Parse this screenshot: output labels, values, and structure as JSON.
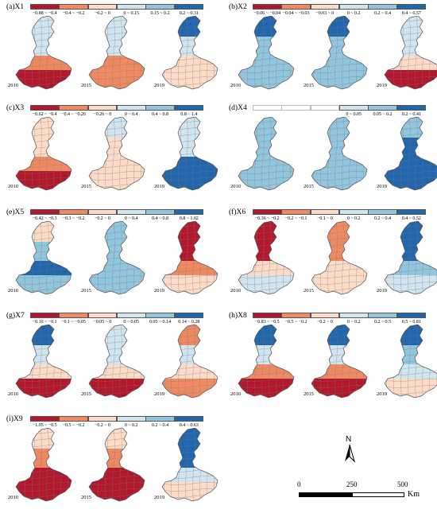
{
  "colors": {
    "dark_red": "#b2182b",
    "red": "#d6604d",
    "salmon": "#f4a582",
    "peach": "#fddbc7",
    "pale_blue": "#d1e5f0",
    "light_blue": "#92c5de",
    "blue": "#4393c3",
    "dark_blue": "#2166ac",
    "white": "#ffffff"
  },
  "panels": [
    {
      "title": "(a)X1",
      "legend": [
        "−0.88 ~ −0.4",
        "−0.4 ~ −0.2",
        "−0.2 ~ 0",
        "0 ~ 0.15",
        "0.15 ~ 0.2",
        "0.2 ~ 0.31"
      ],
      "legend_colors": [
        "#b2182b",
        "#ef8a62",
        "#fddbc7",
        "#d1e5f0",
        "#92c5de",
        "#2166ac"
      ],
      "years": [
        "2010",
        "2015",
        "2019"
      ],
      "maps": [
        {
          "north": "#d1e5f0",
          "upper": "#d1e5f0",
          "middle": "#ef8a62",
          "south": "#b2182b"
        },
        {
          "north": "#d1e5f0",
          "upper": "#d1e5f0",
          "middle": "#ef8a62",
          "south": "#ef8a62"
        },
        {
          "north": "#2166ac",
          "upper": "#d1e5f0",
          "middle": "#fddbc7",
          "south": "#fddbc7"
        }
      ]
    },
    {
      "title": "(b)X2",
      "legend": [
        "−0.06 ~ −0.04",
        "−0.04 ~ −0.03",
        "−0.03 ~ 0",
        "0 ~ 0.2",
        "0.2 ~ 0.4",
        "0.4 ~ 0.57"
      ],
      "legend_colors": [
        "#b2182b",
        "#ef8a62",
        "#fddbc7",
        "#d1e5f0",
        "#92c5de",
        "#2166ac"
      ],
      "years": [
        "2010",
        "2015",
        "2019"
      ],
      "maps": [
        {
          "north": "#2166ac",
          "upper": "#92c5de",
          "middle": "#92c5de",
          "south": "#92c5de"
        },
        {
          "north": "#2166ac",
          "upper": "#92c5de",
          "middle": "#92c5de",
          "south": "#92c5de"
        },
        {
          "north": "#d1e5f0",
          "upper": "#d1e5f0",
          "middle": "#fddbc7",
          "south": "#b2182b"
        }
      ]
    },
    {
      "title": "(c)X3",
      "legend": [
        "−0.62 ~ −0.4",
        "−0.4 ~ −0.26",
        "−0.26 ~ 0",
        "0 ~ 0.4",
        "0.4 ~ 0.8",
        "0.8 ~ 1.4"
      ],
      "legend_colors": [
        "#b2182b",
        "#ef8a62",
        "#fddbc7",
        "#d1e5f0",
        "#92c5de",
        "#2166ac"
      ],
      "years": [
        "2010",
        "2015",
        "2019"
      ],
      "maps": [
        {
          "north": "#fddbc7",
          "upper": "#fddbc7",
          "middle": "#ef8a62",
          "south": "#b2182b"
        },
        {
          "north": "#d1e5f0",
          "upper": "#fddbc7",
          "middle": "#fddbc7",
          "south": "#fddbc7"
        },
        {
          "north": "#d1e5f0",
          "upper": "#d1e5f0",
          "middle": "#2166ac",
          "south": "#2166ac"
        }
      ]
    },
    {
      "title": "(d)X4",
      "legend": [
        "",
        "",
        "",
        "0 ~ 0.05",
        "0.05 ~ 0.2",
        "0.2 ~ 0.41"
      ],
      "legend_colors": [
        "#ffffff",
        "#ffffff",
        "#ffffff",
        "#d1e5f0",
        "#92c5de",
        "#2166ac"
      ],
      "years": [
        "2010",
        "2015",
        "2019"
      ],
      "maps": [
        {
          "north": "#92c5de",
          "upper": "#92c5de",
          "middle": "#92c5de",
          "south": "#92c5de"
        },
        {
          "north": "#92c5de",
          "upper": "#92c5de",
          "middle": "#92c5de",
          "south": "#92c5de"
        },
        {
          "north": "#92c5de",
          "upper": "#2166ac",
          "middle": "#2166ac",
          "south": "#2166ac"
        }
      ]
    },
    {
      "title": "(e)X5",
      "legend": [
        "−0.42 ~ −0.3",
        "−0.3 ~ −0.2",
        "−0.2 ~ 0",
        "0 ~ 0.4",
        "0.4 ~ 0.8",
        "0.8 ~ 1.02"
      ],
      "legend_colors": [
        "#b2182b",
        "#ef8a62",
        "#fddbc7",
        "#d1e5f0",
        "#92c5de",
        "#2166ac"
      ],
      "years": [
        "2010",
        "2015",
        "2019"
      ],
      "maps": [
        {
          "north": "#fddbc7",
          "upper": "#92c5de",
          "middle": "#2166ac",
          "south": "#92c5de"
        },
        {
          "north": "#92c5de",
          "upper": "#92c5de",
          "middle": "#92c5de",
          "south": "#92c5de"
        },
        {
          "north": "#b2182b",
          "upper": "#b2182b",
          "middle": "#ef8a62",
          "south": "#fddbc7"
        }
      ]
    },
    {
      "title": "(f)X6",
      "legend": [
        "−0.36 ~ −0.2",
        "−0.2 ~ −0.1",
        "−0.1 ~ 0",
        "0 ~ 0.2",
        "0.2 ~ 0.4",
        "0.4 ~ 0.52"
      ],
      "legend_colors": [
        "#b2182b",
        "#ef8a62",
        "#fddbc7",
        "#d1e5f0",
        "#92c5de",
        "#2166ac"
      ],
      "years": [
        "2010",
        "2015",
        "2019"
      ],
      "maps": [
        {
          "north": "#b2182b",
          "upper": "#b2182b",
          "middle": "#fddbc7",
          "south": "#d1e5f0"
        },
        {
          "north": "#ef8a62",
          "upper": "#ef8a62",
          "middle": "#fddbc7",
          "south": "#fddbc7"
        },
        {
          "north": "#2166ac",
          "upper": "#2166ac",
          "middle": "#92c5de",
          "south": "#d1e5f0"
        }
      ]
    },
    {
      "title": "(g)X7",
      "legend": [
        "−0.16 ~ −0.1",
        "−0.1 ~ −0.05",
        "−0.05 ~ 0",
        "0 ~ 0.05",
        "0.05 ~ 0.14",
        "0.14 ~ 0.28"
      ],
      "legend_colors": [
        "#b2182b",
        "#ef8a62",
        "#fddbc7",
        "#d1e5f0",
        "#92c5de",
        "#2166ac"
      ],
      "years": [
        "2010",
        "2015",
        "2019"
      ],
      "maps": [
        {
          "north": "#2166ac",
          "upper": "#d1e5f0",
          "middle": "#fddbc7",
          "south": "#b2182b"
        },
        {
          "north": "#d1e5f0",
          "upper": "#d1e5f0",
          "middle": "#fddbc7",
          "south": "#b2182b"
        },
        {
          "north": "#ef8a62",
          "upper": "#d1e5f0",
          "middle": "#fddbc7",
          "south": "#ef8a62"
        }
      ]
    },
    {
      "title": "(h)X8",
      "legend": [
        "−0.83 ~ −0.5",
        "−0.5 ~ −0.2",
        "−0.2 ~ 0",
        "0 ~ 0.2",
        "0.2 ~ 0.5",
        "0.5 ~ 0.81"
      ],
      "legend_colors": [
        "#b2182b",
        "#ef8a62",
        "#fddbc7",
        "#d1e5f0",
        "#92c5de",
        "#2166ac"
      ],
      "years": [
        "2010",
        "2015",
        "2019"
      ],
      "maps": [
        {
          "north": "#2166ac",
          "upper": "#d1e5f0",
          "middle": "#ef8a62",
          "south": "#b2182b"
        },
        {
          "north": "#2166ac",
          "upper": "#d1e5f0",
          "middle": "#ef8a62",
          "south": "#b2182b"
        },
        {
          "north": "#2166ac",
          "upper": "#92c5de",
          "middle": "#d1e5f0",
          "south": "#fddbc7"
        }
      ]
    },
    {
      "title": "(i)X9",
      "legend": [
        "−1.05 ~ −0.5",
        "−0.5 ~ −0.2",
        "−0.2 ~ 0",
        "0 ~ 0.2",
        "0.2 ~ 0.4",
        "0.4 ~ 0.63"
      ],
      "legend_colors": [
        "#b2182b",
        "#ef8a62",
        "#fddbc7",
        "#d1e5f0",
        "#92c5de",
        "#2166ac"
      ],
      "years": [
        "2010",
        "2015",
        "2019"
      ],
      "maps": [
        {
          "north": "#fddbc7",
          "upper": "#ef8a62",
          "middle": "#b2182b",
          "south": "#b2182b"
        },
        {
          "north": "#fddbc7",
          "upper": "#ef8a62",
          "middle": "#b2182b",
          "south": "#b2182b"
        },
        {
          "north": "#2166ac",
          "upper": "#2166ac",
          "middle": "#d1e5f0",
          "south": "#fddbc7"
        }
      ]
    }
  ],
  "north_arrow": {
    "label": "N"
  },
  "scale_bar": {
    "labels": [
      "0",
      "250",
      "500"
    ],
    "unit": "Km"
  }
}
